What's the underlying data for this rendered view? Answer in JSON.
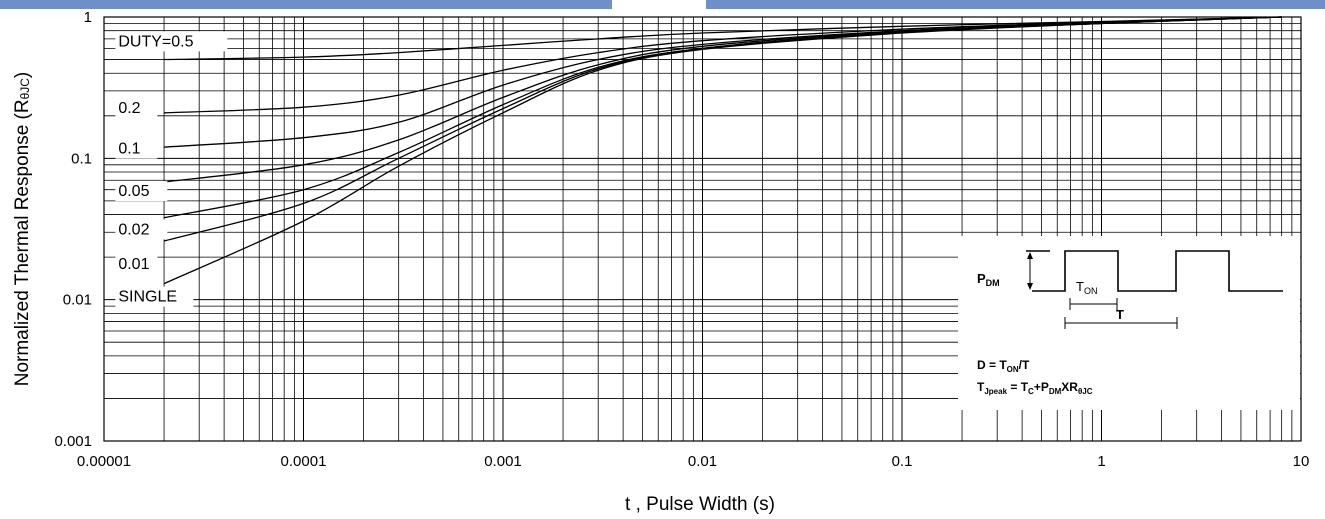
{
  "colors": {
    "header_band": "#6f8fc9",
    "grid": "#000000",
    "curve": "#000000",
    "background": "#ffffff"
  },
  "chart_data": {
    "type": "line",
    "title": "",
    "xlabel": "t , Pulse Width (s)",
    "ylabel_main": "Normalized Thermal Response (R",
    "ylabel_sub": "θJC",
    "ylabel_close": ")",
    "x_scale": "log",
    "y_scale": "log",
    "xlim": [
      1e-05,
      10
    ],
    "ylim": [
      0.001,
      1
    ],
    "grid": true,
    "x_ticks": [
      "0.00001",
      "0.0001",
      "0.001",
      "0.01",
      "0.1",
      "1",
      "10"
    ],
    "y_ticks": [
      "0.001",
      "0.01",
      "0.1",
      "1"
    ],
    "series": [
      {
        "name": "DUTY=0.5",
        "x": [
          2e-05,
          0.0001,
          0.0003,
          0.001,
          0.003,
          0.01,
          0.1,
          1,
          8
        ],
        "y": [
          0.5,
          0.52,
          0.56,
          0.63,
          0.7,
          0.77,
          0.86,
          0.93,
          1.0
        ]
      },
      {
        "name": "0.2",
        "x": [
          2e-05,
          0.0001,
          0.0003,
          0.001,
          0.003,
          0.01,
          0.1,
          1,
          8
        ],
        "y": [
          0.21,
          0.23,
          0.28,
          0.42,
          0.56,
          0.68,
          0.82,
          0.92,
          1.0
        ]
      },
      {
        "name": "0.1",
        "x": [
          2e-05,
          0.0001,
          0.0003,
          0.001,
          0.003,
          0.01,
          0.1,
          1,
          8
        ],
        "y": [
          0.12,
          0.14,
          0.18,
          0.33,
          0.5,
          0.64,
          0.8,
          0.91,
          1.0
        ]
      },
      {
        "name": "0.05",
        "x": [
          2e-05,
          0.0001,
          0.0003,
          0.001,
          0.003,
          0.01,
          0.1,
          1,
          8
        ],
        "y": [
          0.068,
          0.09,
          0.135,
          0.27,
          0.46,
          0.62,
          0.79,
          0.91,
          1.0
        ]
      },
      {
        "name": "0.02",
        "x": [
          2e-05,
          0.0001,
          0.0003,
          0.001,
          0.003,
          0.01,
          0.1,
          1,
          8
        ],
        "y": [
          0.038,
          0.06,
          0.11,
          0.24,
          0.44,
          0.6,
          0.78,
          0.9,
          1.0
        ]
      },
      {
        "name": "0.01",
        "x": [
          2e-05,
          0.0001,
          0.0003,
          0.001,
          0.003,
          0.01,
          0.1,
          1,
          8
        ],
        "y": [
          0.026,
          0.048,
          0.1,
          0.225,
          0.43,
          0.6,
          0.78,
          0.9,
          1.0
        ]
      },
      {
        "name": "SINGLE",
        "x": [
          2e-05,
          0.0001,
          0.0003,
          0.001,
          0.003,
          0.01,
          0.1,
          1,
          8
        ],
        "y": [
          0.013,
          0.036,
          0.088,
          0.21,
          0.42,
          0.59,
          0.77,
          0.9,
          1.0
        ]
      }
    ],
    "labels": [
      "DUTY=0.5",
      "0.2",
      "0.1",
      "0.05",
      "0.02",
      "0.01",
      "SINGLE"
    ],
    "inset": {
      "pdm_main": "P",
      "pdm_sub": "DM",
      "ton_main": "T",
      "ton_sub": "ON",
      "t_label": "T",
      "eq1_main": "D = T",
      "eq1_sub": "ON",
      "eq1_tail": "/T",
      "eq2_a": "T",
      "eq2_a_sub": "Jpeak",
      "eq2_b": " = T",
      "eq2_b_sub": "C",
      "eq2_c": "+P",
      "eq2_c_sub": "DM",
      "eq2_d": "XR",
      "eq2_d_sub": "θJC"
    }
  }
}
